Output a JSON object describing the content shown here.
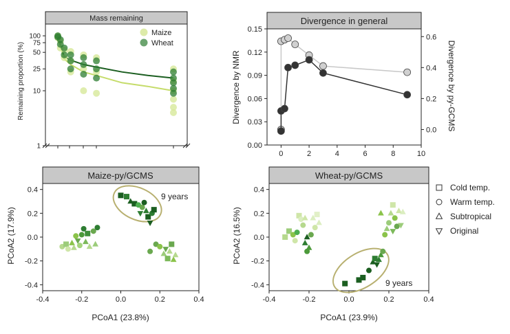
{
  "chart_data": [
    {
      "type": "scatter",
      "title": "Mass remaining",
      "ylabel": "Remaining proportion (%)",
      "xlabel": "",
      "yscale": "log",
      "ylim": [
        1,
        130
      ],
      "yticks": [
        "1",
        "10",
        "25",
        "50",
        "75",
        "100"
      ],
      "legend_position": "top-right",
      "colors": {
        "Maize": "#d7e89a",
        "Wheat": "#2e7d32"
      },
      "series": [
        {
          "name": "Maize",
          "x": [
            0,
            0,
            0.2,
            0.2,
            0.5,
            0.5,
            1,
            1,
            1,
            2,
            2,
            2,
            3,
            3,
            3,
            9,
            9,
            9,
            9,
            9,
            9
          ],
          "y": [
            100,
            92,
            80,
            60,
            55,
            40,
            52,
            35,
            22,
            45,
            25,
            10,
            40,
            22,
            9,
            25,
            15,
            10,
            7,
            5,
            4
          ]
        },
        {
          "name": "Wheat",
          "x": [
            0,
            0,
            0.2,
            0.2,
            0.5,
            0.5,
            1,
            1,
            1,
            2,
            2,
            2,
            3,
            3,
            3,
            9,
            9,
            9,
            9,
            9
          ],
          "y": [
            100,
            95,
            85,
            70,
            60,
            45,
            45,
            35,
            25,
            40,
            30,
            20,
            35,
            25,
            17,
            22,
            17,
            14,
            11,
            9
          ]
        }
      ],
      "fits": [
        {
          "name": "Maize",
          "x": [
            0,
            0.5,
            1,
            2,
            3,
            5,
            7,
            9
          ],
          "y": [
            90,
            38,
            30,
            22,
            19,
            14,
            12,
            10
          ]
        },
        {
          "name": "Wheat",
          "x": [
            0,
            0.5,
            1,
            2,
            3,
            5,
            7,
            9
          ],
          "y": [
            95,
            42,
            36,
            30,
            27,
            22,
            19,
            17
          ]
        }
      ]
    },
    {
      "type": "line",
      "title": "Divergence in general",
      "xlabel": "",
      "ylabel": "Divergence by NMR",
      "y2label": "Divergence by py-GCMS",
      "xlim": [
        -1,
        10
      ],
      "ylim": [
        0,
        0.15
      ],
      "y2lim": [
        -0.1,
        0.65
      ],
      "xticks": [
        "0",
        "2",
        "4",
        "6",
        "8",
        "10"
      ],
      "yticks": [
        "0.00",
        "0.03",
        "0.06",
        "0.09",
        "0.12",
        "0.15"
      ],
      "y2ticks": [
        "0.0",
        "0.2",
        "0.4",
        "0.6"
      ],
      "colors": {
        "nmr": "#333333",
        "pygcms": "#c8c8c8"
      },
      "series": [
        {
          "axis": "left",
          "x": [
            0,
            0,
            0.25,
            0.5,
            1,
            2,
            3,
            9
          ],
          "y": [
            0.018,
            0.044,
            0.047,
            0.1,
            0.103,
            0.11,
            0.093,
            0.065
          ]
        },
        {
          "axis": "right",
          "x": [
            0,
            0,
            0.25,
            0.5,
            1,
            2,
            3,
            9
          ],
          "y": [
            0.0,
            0.57,
            0.58,
            0.59,
            0.55,
            0.48,
            0.41,
            0.37
          ]
        }
      ]
    },
    {
      "type": "scatter",
      "title": "Maize-py/GCMS",
      "xlabel": "PCoA1 (23.8%)",
      "ylabel": "PCoA2 (17.9%)",
      "xlim": [
        -0.4,
        0.4
      ],
      "ylim": [
        -0.45,
        0.45
      ],
      "xticks": [
        "-0.4",
        "-0.2",
        "0.0",
        "0.2",
        "0.4"
      ],
      "yticks": [
        "-0.4",
        "-0.2",
        "0.0",
        "0.2",
        "0.4"
      ],
      "annotation": "9 years",
      "points": [
        {
          "x": -0.3,
          "y": -0.08,
          "m": "circle",
          "c": "#b6d98e"
        },
        {
          "x": -0.28,
          "y": -0.06,
          "m": "square",
          "c": "#9ccc7a"
        },
        {
          "x": -0.27,
          "y": -0.1,
          "m": "circle",
          "c": "#cfe6a8"
        },
        {
          "x": -0.25,
          "y": -0.05,
          "m": "triangle",
          "c": "#8bc34a"
        },
        {
          "x": -0.24,
          "y": -0.09,
          "m": "triangle",
          "c": "#b6d98e"
        },
        {
          "x": -0.22,
          "y": -0.03,
          "m": "down",
          "c": "#6aa84f"
        },
        {
          "x": -0.21,
          "y": -0.07,
          "m": "circle",
          "c": "#a5d47c"
        },
        {
          "x": -0.2,
          "y": 0.02,
          "m": "circle",
          "c": "#4c9a3a"
        },
        {
          "x": -0.19,
          "y": 0.07,
          "m": "circle",
          "c": "#2e7d32"
        },
        {
          "x": -0.18,
          "y": -0.04,
          "m": "triangle",
          "c": "#7cb95a"
        },
        {
          "x": -0.17,
          "y": 0.03,
          "m": "square",
          "c": "#3f8f3a"
        },
        {
          "x": -0.16,
          "y": -0.08,
          "m": "triangle",
          "c": "#b6d98e"
        },
        {
          "x": -0.14,
          "y": 0.05,
          "m": "circle",
          "c": "#6aa84f"
        },
        {
          "x": -0.12,
          "y": 0.08,
          "m": "circle",
          "c": "#2e7d32"
        },
        {
          "x": -0.13,
          "y": -0.06,
          "m": "triangle",
          "c": "#9ccc7a"
        },
        {
          "x": -0.23,
          "y": 0.01,
          "m": "circle",
          "c": "#8bc34a"
        },
        {
          "x": 0.0,
          "y": 0.35,
          "m": "square",
          "c": "#1b5e20"
        },
        {
          "x": 0.03,
          "y": 0.34,
          "m": "square",
          "c": "#2e7d32"
        },
        {
          "x": 0.05,
          "y": 0.3,
          "m": "triangle",
          "c": "#1b5e20"
        },
        {
          "x": 0.07,
          "y": 0.28,
          "m": "square",
          "c": "#1b5e20"
        },
        {
          "x": 0.09,
          "y": 0.27,
          "m": "circle",
          "c": "#4caf50"
        },
        {
          "x": 0.11,
          "y": 0.25,
          "m": "circle",
          "c": "#6aa84f"
        },
        {
          "x": 0.12,
          "y": 0.29,
          "m": "circle",
          "c": "#1b5e20"
        },
        {
          "x": 0.13,
          "y": 0.22,
          "m": "triangle",
          "c": "#2e7d32"
        },
        {
          "x": 0.14,
          "y": 0.17,
          "m": "square",
          "c": "#1b5e20"
        },
        {
          "x": 0.15,
          "y": 0.12,
          "m": "down",
          "c": "#1b5e20"
        },
        {
          "x": 0.16,
          "y": 0.2,
          "m": "circle",
          "c": "#2e7d32"
        },
        {
          "x": 0.17,
          "y": 0.23,
          "m": "square",
          "c": "#1b5e20"
        },
        {
          "x": 0.1,
          "y": 0.2,
          "m": "down",
          "c": "#2e7d32"
        },
        {
          "x": 0.15,
          "y": -0.12,
          "m": "circle",
          "c": "#6aa84f"
        },
        {
          "x": 0.18,
          "y": -0.06,
          "m": "circle",
          "c": "#6aa84f"
        },
        {
          "x": 0.2,
          "y": -0.08,
          "m": "circle",
          "c": "#8bc34a"
        },
        {
          "x": 0.22,
          "y": -0.14,
          "m": "triangle",
          "c": "#9ccc7a"
        },
        {
          "x": 0.24,
          "y": -0.18,
          "m": "square",
          "c": "#7cb95a"
        },
        {
          "x": 0.25,
          "y": -0.12,
          "m": "triangle",
          "c": "#b6d98e"
        },
        {
          "x": 0.26,
          "y": -0.06,
          "m": "square",
          "c": "#6aa84f"
        },
        {
          "x": 0.27,
          "y": -0.19,
          "m": "triangle",
          "c": "#8bc34a"
        },
        {
          "x": 0.28,
          "y": -0.15,
          "m": "triangle",
          "c": "#b6d98e"
        },
        {
          "x": 0.23,
          "y": -0.1,
          "m": "down",
          "c": "#6aa84f"
        }
      ]
    },
    {
      "type": "scatter",
      "title": "Wheat-py/GCMS",
      "xlabel": "PCoA1 (23.9%)",
      "ylabel": "PCoA2 (16.5%)",
      "xlim": [
        -0.4,
        0.4
      ],
      "ylim": [
        -0.45,
        0.45
      ],
      "xticks": [
        "-0.4",
        "-0.2",
        "0.0",
        "0.2",
        "0.4"
      ],
      "yticks": [
        "-0.4",
        "-0.2",
        "0.0",
        "0.2",
        "0.4"
      ],
      "annotation": "9 years",
      "points": [
        {
          "x": -0.32,
          "y": 0.0,
          "m": "square",
          "c": "#b6d98e"
        },
        {
          "x": -0.3,
          "y": 0.05,
          "m": "square",
          "c": "#9ccc7a"
        },
        {
          "x": -0.28,
          "y": 0.02,
          "m": "circle",
          "c": "#8bc34a"
        },
        {
          "x": -0.26,
          "y": 0.04,
          "m": "circle",
          "c": "#4caf50"
        },
        {
          "x": -0.27,
          "y": -0.03,
          "m": "circle",
          "c": "#cfe6a8"
        },
        {
          "x": -0.25,
          "y": 0.18,
          "m": "square",
          "c": "#cfe6a8"
        },
        {
          "x": -0.24,
          "y": 0.15,
          "m": "circle",
          "c": "#dbeec0"
        },
        {
          "x": -0.23,
          "y": 0.1,
          "m": "circle",
          "c": "#b6d98e"
        },
        {
          "x": -0.22,
          "y": -0.05,
          "m": "triangle",
          "c": "#2e7d32"
        },
        {
          "x": -0.21,
          "y": 0.0,
          "m": "triangle",
          "c": "#1b5e20"
        },
        {
          "x": -0.2,
          "y": -0.09,
          "m": "triangle",
          "c": "#4c9a3a"
        },
        {
          "x": -0.19,
          "y": 0.02,
          "m": "circle",
          "c": "#6aa84f"
        },
        {
          "x": -0.18,
          "y": 0.16,
          "m": "triangle",
          "c": "#dbeec0"
        },
        {
          "x": -0.17,
          "y": 0.08,
          "m": "circle",
          "c": "#cfe6a8"
        },
        {
          "x": -0.16,
          "y": 0.19,
          "m": "square",
          "c": "#e2f0c8"
        },
        {
          "x": -0.15,
          "y": 0.12,
          "m": "triangle",
          "c": "#dbeec0"
        },
        {
          "x": -0.21,
          "y": -0.12,
          "m": "circle",
          "c": "#4c9a3a"
        },
        {
          "x": -0.22,
          "y": 0.16,
          "m": "triangle",
          "c": "#cfe6a8"
        },
        {
          "x": -0.02,
          "y": -0.39,
          "m": "square",
          "c": "#1b5e20"
        },
        {
          "x": 0.05,
          "y": -0.36,
          "m": "square",
          "c": "#1b5e20"
        },
        {
          "x": 0.07,
          "y": -0.34,
          "m": "square",
          "c": "#1b5e20"
        },
        {
          "x": 0.1,
          "y": -0.28,
          "m": "circle",
          "c": "#1b5e20"
        },
        {
          "x": 0.12,
          "y": -0.21,
          "m": "triangle",
          "c": "#1b5e20"
        },
        {
          "x": 0.13,
          "y": -0.18,
          "m": "square",
          "c": "#2e7d32"
        },
        {
          "x": 0.14,
          "y": -0.23,
          "m": "down",
          "c": "#1b5e20"
        },
        {
          "x": 0.15,
          "y": -0.19,
          "m": "triangle",
          "c": "#2e7d32"
        },
        {
          "x": 0.16,
          "y": -0.15,
          "m": "triangle",
          "c": "#4c9a3a"
        },
        {
          "x": 0.17,
          "y": -0.12,
          "m": "circle",
          "c": "#6aa84f"
        },
        {
          "x": 0.18,
          "y": 0.02,
          "m": "circle",
          "c": "#8bc34a"
        },
        {
          "x": 0.19,
          "y": 0.07,
          "m": "triangle",
          "c": "#9ccc7a"
        },
        {
          "x": 0.2,
          "y": 0.12,
          "m": "circle",
          "c": "#9ccc7a"
        },
        {
          "x": 0.21,
          "y": 0.2,
          "m": "triangle",
          "c": "#b6d98e"
        },
        {
          "x": 0.22,
          "y": 0.27,
          "m": "square",
          "c": "#cfe6a8"
        },
        {
          "x": 0.23,
          "y": 0.16,
          "m": "circle",
          "c": "#8bc34a"
        },
        {
          "x": 0.24,
          "y": 0.09,
          "m": "circle",
          "c": "#6aa84f"
        },
        {
          "x": 0.25,
          "y": 0.22,
          "m": "triangle",
          "c": "#cfe6a8"
        },
        {
          "x": 0.26,
          "y": 0.1,
          "m": "down",
          "c": "#9ccc7a"
        },
        {
          "x": 0.27,
          "y": 0.21,
          "m": "triangle",
          "c": "#dbeec0"
        },
        {
          "x": 0.16,
          "y": 0.2,
          "m": "triangle",
          "c": "#8bc34a"
        },
        {
          "x": 0.22,
          "y": 0.05,
          "m": "down",
          "c": "#7cb95a"
        }
      ]
    }
  ],
  "legend": {
    "markers": [
      {
        "label": "Cold temp.",
        "marker": "square"
      },
      {
        "label": "Warm temp.",
        "marker": "circle"
      },
      {
        "label": "Subtropical",
        "marker": "triangle"
      },
      {
        "label": "Original",
        "marker": "down"
      }
    ]
  }
}
